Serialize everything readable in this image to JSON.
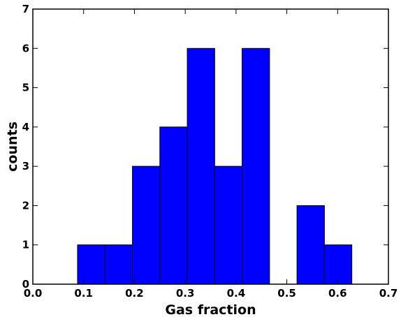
{
  "chart_data": {
    "type": "bar",
    "title": "",
    "xlabel": "Gas fraction",
    "ylabel": "counts",
    "xlim": [
      0.0,
      0.7
    ],
    "ylim": [
      0,
      7
    ],
    "xticks": [
      "0.0",
      "0.1",
      "0.2",
      "0.3",
      "0.4",
      "0.5",
      "0.6",
      "0.7"
    ],
    "yticks": [
      "0",
      "1",
      "2",
      "3",
      "4",
      "5",
      "6",
      "7"
    ],
    "bins": [
      {
        "x0": 0.088,
        "x1": 0.142,
        "count": 1
      },
      {
        "x0": 0.142,
        "x1": 0.196,
        "count": 1
      },
      {
        "x0": 0.196,
        "x1": 0.25,
        "count": 3
      },
      {
        "x0": 0.25,
        "x1": 0.304,
        "count": 4
      },
      {
        "x0": 0.304,
        "x1": 0.358,
        "count": 6
      },
      {
        "x0": 0.358,
        "x1": 0.412,
        "count": 3
      },
      {
        "x0": 0.412,
        "x1": 0.466,
        "count": 6
      },
      {
        "x0": 0.466,
        "x1": 0.52,
        "count": 0
      },
      {
        "x0": 0.52,
        "x1": 0.574,
        "count": 2
      },
      {
        "x0": 0.574,
        "x1": 0.628,
        "count": 1
      }
    ],
    "bar_color": "#0000ff",
    "edge_color": "#000000",
    "grid": false,
    "legend": "none"
  }
}
